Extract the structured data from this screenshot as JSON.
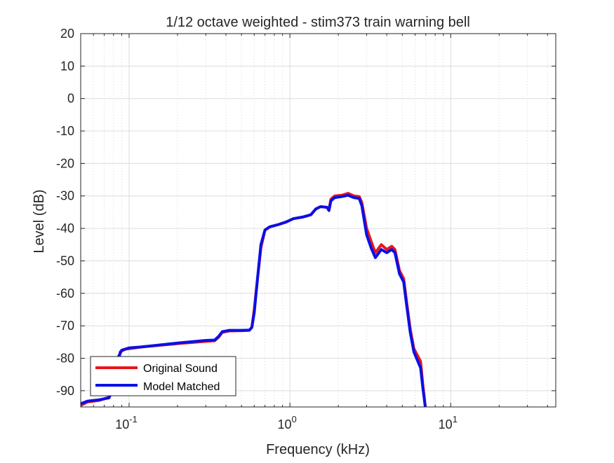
{
  "chart_data": {
    "type": "line",
    "title": "1/12 octave weighted - stim373 train warning bell",
    "xlabel": "Frequency (kHz)",
    "ylabel": "Level (dB)",
    "xscale": "log",
    "xlim": [
      0.05,
      45
    ],
    "ylim": [
      -95,
      20
    ],
    "grid": true,
    "legend_position": "bottom-left",
    "x_tick_labels": [
      {
        "value": 0.1,
        "base": "10",
        "exp": "-1"
      },
      {
        "value": 1,
        "base": "10",
        "exp": "0"
      },
      {
        "value": 10,
        "base": "10",
        "exp": "1"
      }
    ],
    "y_ticks": [
      20,
      10,
      0,
      -10,
      -20,
      -30,
      -40,
      -50,
      -60,
      -70,
      -80,
      -90
    ],
    "series": [
      {
        "name": "Original Sound",
        "color": "#e8161c",
        "points": [
          [
            0.05,
            -94.5
          ],
          [
            0.055,
            -93.5
          ],
          [
            0.065,
            -93
          ],
          [
            0.075,
            -92
          ],
          [
            0.08,
            -90
          ],
          [
            0.085,
            -83
          ],
          [
            0.088,
            -78
          ],
          [
            0.095,
            -77.2
          ],
          [
            0.12,
            -76.5
          ],
          [
            0.2,
            -75.5
          ],
          [
            0.3,
            -74.8
          ],
          [
            0.34,
            -74.6
          ],
          [
            0.36,
            -73.5
          ],
          [
            0.38,
            -72
          ],
          [
            0.42,
            -71.6
          ],
          [
            0.5,
            -71.5
          ],
          [
            0.56,
            -71.4
          ],
          [
            0.58,
            -70.5
          ],
          [
            0.6,
            -65
          ],
          [
            0.63,
            -55
          ],
          [
            0.66,
            -46
          ],
          [
            0.7,
            -40.5
          ],
          [
            0.75,
            -39.5
          ],
          [
            0.85,
            -38.8
          ],
          [
            0.95,
            -38
          ],
          [
            1.05,
            -37
          ],
          [
            1.2,
            -36.5
          ],
          [
            1.35,
            -35.8
          ],
          [
            1.45,
            -34
          ],
          [
            1.55,
            -33.3
          ],
          [
            1.7,
            -33.5
          ],
          [
            1.75,
            -34.2
          ],
          [
            1.8,
            -31
          ],
          [
            1.9,
            -30
          ],
          [
            2.1,
            -29.8
          ],
          [
            2.3,
            -29.2
          ],
          [
            2.5,
            -30
          ],
          [
            2.7,
            -30.2
          ],
          [
            2.8,
            -32
          ],
          [
            3.0,
            -40
          ],
          [
            3.2,
            -44
          ],
          [
            3.4,
            -47.5
          ],
          [
            3.7,
            -45
          ],
          [
            4.0,
            -46.5
          ],
          [
            4.3,
            -45.5
          ],
          [
            4.5,
            -46.5
          ],
          [
            4.8,
            -53
          ],
          [
            5.1,
            -55.5
          ],
          [
            5.3,
            -62
          ],
          [
            5.6,
            -71
          ],
          [
            5.9,
            -77
          ],
          [
            6.5,
            -81
          ],
          [
            6.7,
            -88
          ],
          [
            6.95,
            -95
          ]
        ]
      },
      {
        "name": "Model Matched",
        "color": "#0a10e6",
        "points": [
          [
            0.05,
            -94
          ],
          [
            0.055,
            -93.2
          ],
          [
            0.065,
            -92.8
          ],
          [
            0.075,
            -92.2
          ],
          [
            0.08,
            -88
          ],
          [
            0.085,
            -80
          ],
          [
            0.09,
            -77.5
          ],
          [
            0.1,
            -76.8
          ],
          [
            0.12,
            -76.5
          ],
          [
            0.2,
            -75.3
          ],
          [
            0.3,
            -74.5
          ],
          [
            0.34,
            -74.4
          ],
          [
            0.36,
            -73.3
          ],
          [
            0.38,
            -71.8
          ],
          [
            0.42,
            -71.4
          ],
          [
            0.5,
            -71.4
          ],
          [
            0.56,
            -71.3
          ],
          [
            0.58,
            -70.5
          ],
          [
            0.6,
            -66
          ],
          [
            0.63,
            -55
          ],
          [
            0.66,
            -45
          ],
          [
            0.7,
            -40.5
          ],
          [
            0.75,
            -39.5
          ],
          [
            0.85,
            -38.8
          ],
          [
            0.95,
            -38
          ],
          [
            1.05,
            -37
          ],
          [
            1.2,
            -36.5
          ],
          [
            1.35,
            -35.8
          ],
          [
            1.45,
            -34
          ],
          [
            1.55,
            -33.3
          ],
          [
            1.7,
            -33.5
          ],
          [
            1.75,
            -34.5
          ],
          [
            1.8,
            -31.5
          ],
          [
            1.9,
            -30.5
          ],
          [
            2.1,
            -30.2
          ],
          [
            2.3,
            -29.8
          ],
          [
            2.5,
            -30.5
          ],
          [
            2.7,
            -30.8
          ],
          [
            2.8,
            -33
          ],
          [
            3.0,
            -42
          ],
          [
            3.2,
            -46
          ],
          [
            3.4,
            -49
          ],
          [
            3.7,
            -46.5
          ],
          [
            4.0,
            -47.5
          ],
          [
            4.3,
            -46.5
          ],
          [
            4.5,
            -47.5
          ],
          [
            4.8,
            -54
          ],
          [
            5.1,
            -56.5
          ],
          [
            5.3,
            -63
          ],
          [
            5.6,
            -72
          ],
          [
            5.9,
            -78
          ],
          [
            6.5,
            -83
          ],
          [
            6.7,
            -89
          ],
          [
            6.95,
            -95
          ]
        ]
      }
    ]
  }
}
